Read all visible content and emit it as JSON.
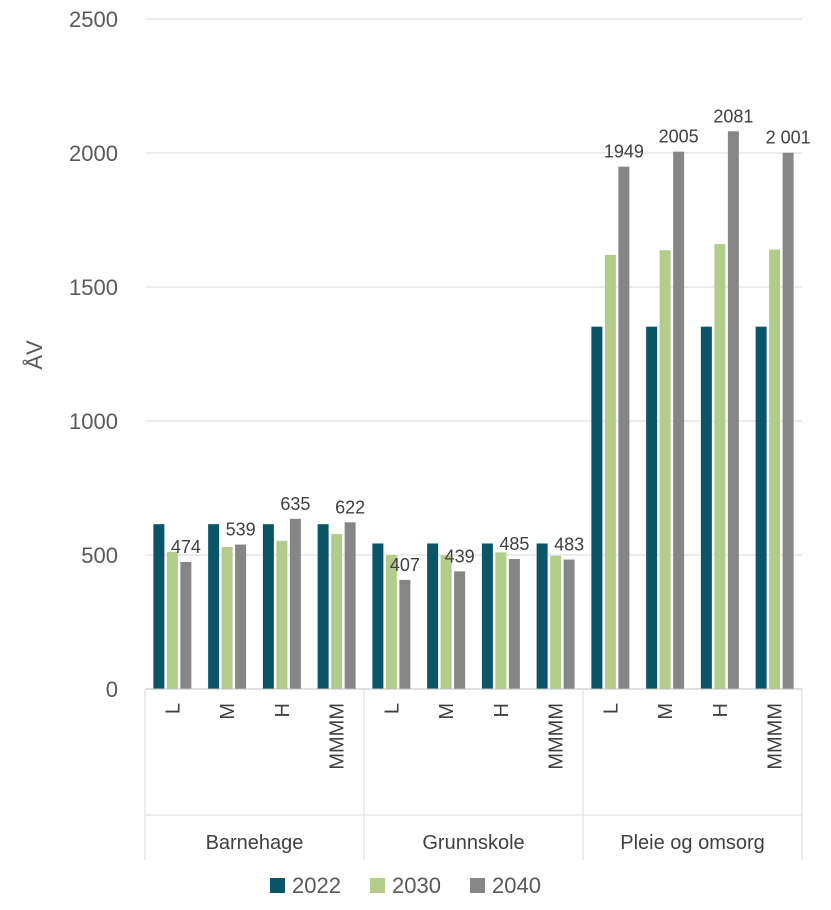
{
  "chart_data": {
    "type": "bar",
    "title": "",
    "xlabel": "",
    "ylabel": "ÅV",
    "ylim": [
      0,
      2500
    ],
    "yticks": [
      0,
      500,
      1000,
      1500,
      2000,
      2500
    ],
    "grid": true,
    "legend_position": "bottom",
    "groups": [
      {
        "name": "Barnehage",
        "categories": [
          "L",
          "M",
          "H",
          "MMMM"
        ]
      },
      {
        "name": "Grunnskole",
        "categories": [
          "L",
          "M",
          "H",
          "MMMM"
        ]
      },
      {
        "name": "Pleie og omsorg",
        "categories": [
          "L",
          "M",
          "H",
          "MMMM"
        ]
      }
    ],
    "series": [
      {
        "name": "2022",
        "color": "#0b5567",
        "values": [
          615,
          615,
          615,
          615,
          543,
          543,
          543,
          543,
          1352,
          1352,
          1352,
          1352
        ]
      },
      {
        "name": "2030",
        "color": "#b3cc8a",
        "values": [
          512,
          530,
          553,
          578,
          500,
          498,
          510,
          497,
          1620,
          1637,
          1660,
          1640
        ]
      },
      {
        "name": "2040",
        "color": "#868686",
        "values": [
          474,
          539,
          635,
          622,
          407,
          439,
          485,
          483,
          1949,
          2005,
          2081,
          2001
        ]
      }
    ],
    "data_labels": [
      "474",
      "539",
      "635",
      "622",
      "407",
      "439",
      "485",
      "483",
      "1949",
      "2005",
      "2081",
      "2 001"
    ]
  }
}
